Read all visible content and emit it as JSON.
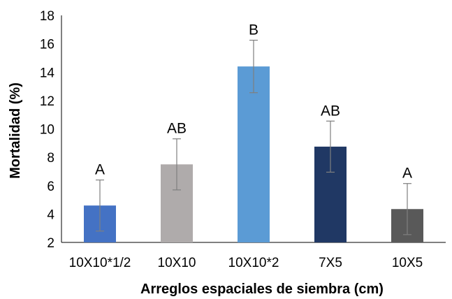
{
  "chart_data": {
    "type": "bar",
    "xlabel": "Arreglos espaciales de siembra (cm)",
    "ylabel": "Mortalidad (%)",
    "ylim": [
      2,
      18
    ],
    "yticks": [
      2,
      4,
      6,
      8,
      10,
      12,
      14,
      16,
      18
    ],
    "grid": false,
    "categories": [
      "10X10*1/2",
      "10X10",
      "10X10*2",
      "7X5",
      "10X5"
    ],
    "values": [
      4.6,
      7.5,
      14.4,
      8.75,
      4.35
    ],
    "error": [
      1.8,
      1.8,
      1.85,
      1.8,
      1.8
    ],
    "annotations": [
      "A",
      "AB",
      "B",
      "AB",
      "A"
    ],
    "colors": [
      "#4472C4",
      "#AFABAB",
      "#5B9BD5",
      "#203864",
      "#595959"
    ],
    "error_color": "#7f7f7f"
  }
}
